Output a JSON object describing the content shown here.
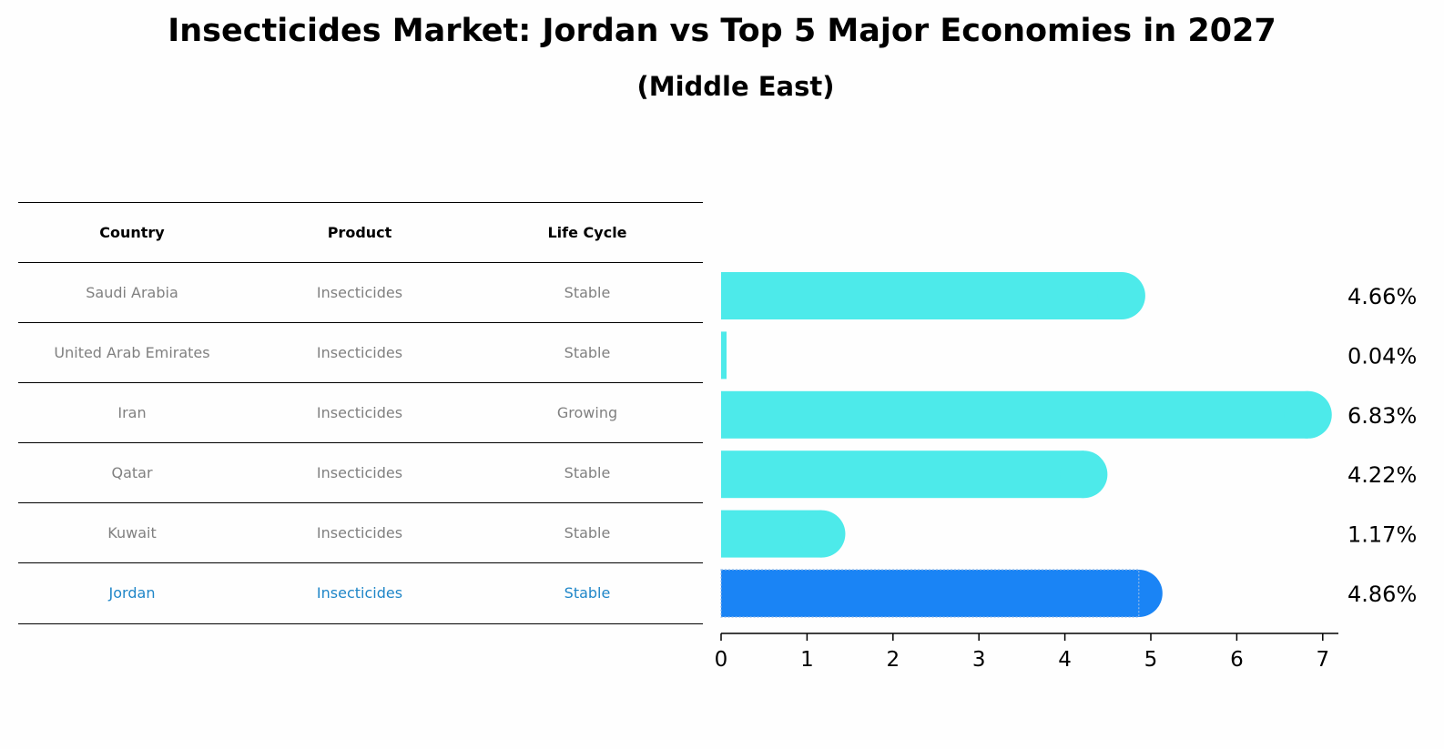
{
  "title": "Insecticides Market: Jordan vs Top 5 Major Economies in 2027",
  "subtitle": "(Middle East)",
  "table": {
    "headers": [
      "Country",
      "Product",
      "Life Cycle"
    ],
    "rows": [
      {
        "country": "Saudi Arabia",
        "product": "Insecticides",
        "life_cycle": "Stable"
      },
      {
        "country": "United Arab Emirates",
        "product": "Insecticides",
        "life_cycle": "Stable"
      },
      {
        "country": "Iran",
        "product": "Insecticides",
        "life_cycle": "Growing"
      },
      {
        "country": "Qatar",
        "product": "Insecticides",
        "life_cycle": "Stable"
      },
      {
        "country": "Kuwait",
        "product": "Insecticides",
        "life_cycle": "Stable"
      },
      {
        "country": "Jordan",
        "product": "Insecticides",
        "life_cycle": "Stable"
      }
    ]
  },
  "colors": {
    "bar": "#4deaea",
    "highlight_bar": "#1a84f5",
    "highlight_text": "#1f86c8",
    "muted_text": "#808080"
  },
  "chart_data": {
    "type": "bar",
    "orientation": "horizontal",
    "categories": [
      "Saudi Arabia",
      "United Arab Emirates",
      "Iran",
      "Qatar",
      "Kuwait",
      "Jordan"
    ],
    "values": [
      4.66,
      0.04,
      6.83,
      4.22,
      1.17,
      4.86
    ],
    "labels": [
      "4.66%",
      "0.04%",
      "6.83%",
      "4.22%",
      "1.17%",
      "4.86%"
    ],
    "highlight": "Jordan",
    "xlim": [
      0,
      7.2
    ],
    "xticks": [
      0,
      1,
      2,
      3,
      4,
      5,
      6,
      7
    ],
    "title": "Insecticides Market: Jordan vs Top 5 Major Economies in 2027",
    "xlabel": "",
    "ylabel": ""
  }
}
